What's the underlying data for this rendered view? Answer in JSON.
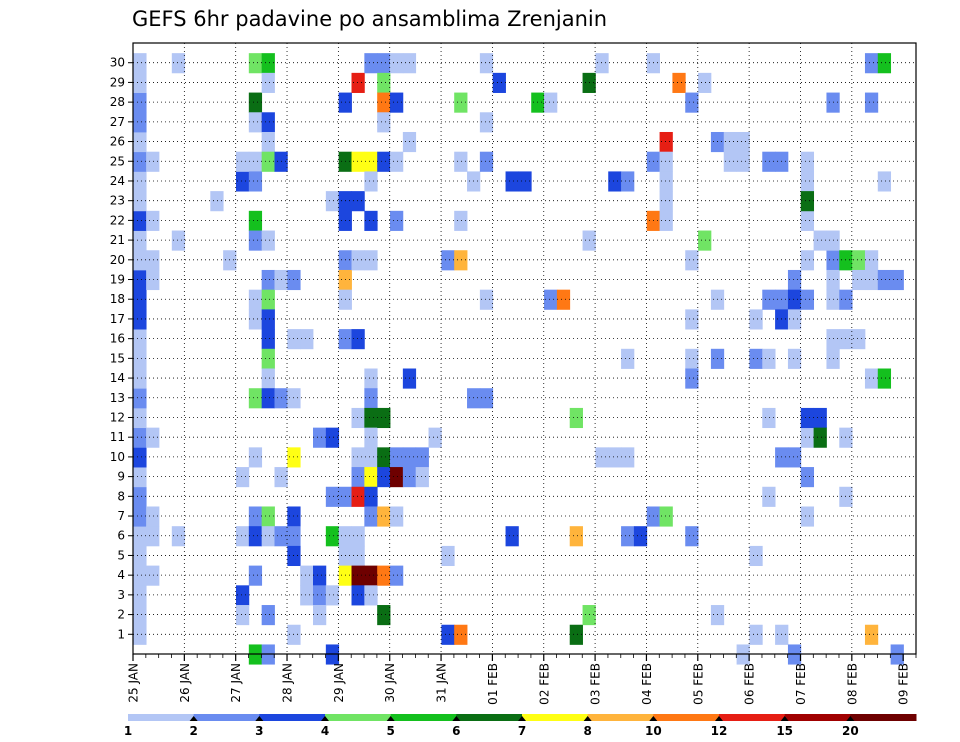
{
  "chart_data": {
    "type": "heatmap",
    "title": "GEFS 6hr padavine po ansamblima Zrenjanin",
    "xlabel": "",
    "ylabel": "",
    "x_tick_labels": [
      "25 JAN",
      "26 JAN",
      "27 JAN",
      "28 JAN",
      "29 JAN",
      "30 JAN",
      "31 JAN",
      "01 FEB",
      "02 FEB",
      "03 FEB",
      "04 FEB",
      "05 FEB",
      "06 FEB",
      "07 FEB",
      "08 FEB",
      "09 FEB"
    ],
    "y_tick_labels": [
      "1",
      "2",
      "3",
      "4",
      "5",
      "6",
      "7",
      "8",
      "9",
      "10",
      "11",
      "12",
      "13",
      "14",
      "15",
      "16",
      "17",
      "18",
      "19",
      "20",
      "21",
      "22",
      "23",
      "24",
      "25",
      "26",
      "27",
      "28",
      "29",
      "30"
    ],
    "x_range": [
      0,
      61
    ],
    "y_range": [
      0,
      31
    ],
    "steps_per_day": 4,
    "grid": true,
    "colorbar": {
      "labels": [
        "1",
        "2",
        "3",
        "4",
        "5",
        "6",
        "7",
        "8",
        "10",
        "12",
        "15",
        "20"
      ],
      "colors": [
        "#b3c6f5",
        "#6a8cf0",
        "#1c46de",
        "#70e464",
        "#14c01e",
        "#0a6e14",
        "#ffff14",
        "#ffb43c",
        "#ff7814",
        "#e61e14",
        "#a00000",
        "#6e0000"
      ]
    },
    "cells": [
      [
        0,
        1,
        1
      ],
      [
        0,
        2,
        1
      ],
      [
        0,
        3,
        1
      ],
      [
        0,
        4,
        1
      ],
      [
        0,
        5,
        1
      ],
      [
        0,
        6,
        1
      ],
      [
        0,
        7,
        2
      ],
      [
        0,
        8,
        2
      ],
      [
        0,
        9,
        1
      ],
      [
        0,
        10,
        3
      ],
      [
        0,
        11,
        2
      ],
      [
        0,
        12,
        1
      ],
      [
        0,
        13,
        2
      ],
      [
        0,
        14,
        1
      ],
      [
        0,
        15,
        1
      ],
      [
        0,
        16,
        1
      ],
      [
        0,
        17,
        3
      ],
      [
        0,
        18,
        3
      ],
      [
        0,
        19,
        3
      ],
      [
        0,
        20,
        1
      ],
      [
        0,
        21,
        1
      ],
      [
        0,
        22,
        3
      ],
      [
        0,
        23,
        1
      ],
      [
        0,
        24,
        1
      ],
      [
        0,
        25,
        2
      ],
      [
        0,
        26,
        1
      ],
      [
        0,
        27,
        2
      ],
      [
        0,
        28,
        2
      ],
      [
        0,
        29,
        1
      ],
      [
        0,
        30,
        1
      ],
      [
        1,
        4,
        1
      ],
      [
        1,
        6,
        1
      ],
      [
        1,
        7,
        1
      ],
      [
        1,
        11,
        1
      ],
      [
        1,
        19,
        1
      ],
      [
        1,
        20,
        1
      ],
      [
        1,
        22,
        1
      ],
      [
        1,
        25,
        1
      ],
      [
        3,
        21,
        1
      ],
      [
        3,
        6,
        1
      ],
      [
        3,
        30,
        1
      ],
      [
        6,
        23,
        1
      ],
      [
        7,
        20,
        1
      ],
      [
        8,
        3,
        3
      ],
      [
        8,
        9,
        1
      ],
      [
        8,
        6,
        1
      ],
      [
        8,
        2,
        1
      ],
      [
        8,
        24,
        3
      ],
      [
        8,
        25,
        1
      ],
      [
        9,
        30,
        4
      ],
      [
        9,
        28,
        6
      ],
      [
        9,
        27,
        1
      ],
      [
        9,
        25,
        1
      ],
      [
        9,
        24,
        2
      ],
      [
        9,
        22,
        5
      ],
      [
        9,
        21,
        2
      ],
      [
        9,
        18,
        1
      ],
      [
        9,
        17,
        1
      ],
      [
        9,
        13,
        4
      ],
      [
        9,
        10,
        1
      ],
      [
        9,
        7,
        2
      ],
      [
        9,
        6,
        3
      ],
      [
        9,
        4,
        2
      ],
      [
        9,
        0,
        5
      ],
      [
        10,
        30,
        5
      ],
      [
        10,
        29,
        1
      ],
      [
        10,
        27,
        3
      ],
      [
        10,
        26,
        1
      ],
      [
        10,
        25,
        4
      ],
      [
        10,
        21,
        1
      ],
      [
        10,
        19,
        2
      ],
      [
        10,
        18,
        4
      ],
      [
        10,
        17,
        3
      ],
      [
        10,
        16,
        3
      ],
      [
        10,
        15,
        4
      ],
      [
        10,
        14,
        1
      ],
      [
        10,
        13,
        3
      ],
      [
        10,
        7,
        4
      ],
      [
        10,
        6,
        1
      ],
      [
        10,
        2,
        2
      ],
      [
        10,
        0,
        2
      ],
      [
        11,
        25,
        3
      ],
      [
        11,
        19,
        1
      ],
      [
        11,
        13,
        2
      ],
      [
        11,
        9,
        1
      ],
      [
        11,
        6,
        2
      ],
      [
        12,
        19,
        2
      ],
      [
        12,
        16,
        1
      ],
      [
        12,
        10,
        7
      ],
      [
        12,
        7,
        3
      ],
      [
        12,
        6,
        2
      ],
      [
        12,
        5,
        3
      ],
      [
        12,
        13,
        1
      ],
      [
        12,
        1,
        1
      ],
      [
        13,
        16,
        1
      ],
      [
        13,
        4,
        1
      ],
      [
        13,
        3,
        1
      ],
      [
        14,
        11,
        2
      ],
      [
        14,
        4,
        3
      ],
      [
        14,
        3,
        2
      ],
      [
        14,
        2,
        1
      ],
      [
        15,
        23,
        1
      ],
      [
        15,
        11,
        3
      ],
      [
        15,
        8,
        2
      ],
      [
        15,
        6,
        5
      ],
      [
        15,
        3,
        1
      ],
      [
        15,
        0,
        3
      ],
      [
        16,
        28,
        3
      ],
      [
        16,
        25,
        6
      ],
      [
        16,
        23,
        3
      ],
      [
        16,
        22,
        3
      ],
      [
        16,
        20,
        2
      ],
      [
        16,
        19,
        8
      ],
      [
        16,
        18,
        1
      ],
      [
        16,
        16,
        2
      ],
      [
        16,
        8,
        2
      ],
      [
        16,
        6,
        1
      ],
      [
        16,
        5,
        1
      ],
      [
        16,
        4,
        7
      ],
      [
        17,
        29,
        10
      ],
      [
        17,
        25,
        7
      ],
      [
        17,
        23,
        3
      ],
      [
        17,
        20,
        1
      ],
      [
        17,
        16,
        3
      ],
      [
        17,
        12,
        1
      ],
      [
        17,
        10,
        1
      ],
      [
        17,
        9,
        2
      ],
      [
        17,
        8,
        10
      ],
      [
        17,
        6,
        1
      ],
      [
        17,
        5,
        1
      ],
      [
        17,
        4,
        12
      ],
      [
        17,
        3,
        3
      ],
      [
        18,
        30,
        2
      ],
      [
        18,
        25,
        7
      ],
      [
        18,
        24,
        1
      ],
      [
        18,
        22,
        3
      ],
      [
        18,
        20,
        1
      ],
      [
        18,
        14,
        1
      ],
      [
        18,
        13,
        2
      ],
      [
        18,
        12,
        6
      ],
      [
        18,
        11,
        1
      ],
      [
        18,
        10,
        1
      ],
      [
        18,
        9,
        7
      ],
      [
        18,
        8,
        3
      ],
      [
        18,
        7,
        2
      ],
      [
        18,
        4,
        12
      ],
      [
        18,
        3,
        1
      ],
      [
        19,
        30,
        2
      ],
      [
        19,
        29,
        4
      ],
      [
        19,
        28,
        9
      ],
      [
        19,
        27,
        1
      ],
      [
        19,
        25,
        3
      ],
      [
        19,
        12,
        6
      ],
      [
        19,
        10,
        6
      ],
      [
        19,
        9,
        3
      ],
      [
        19,
        7,
        8
      ],
      [
        19,
        4,
        9
      ],
      [
        19,
        2,
        6
      ],
      [
        20,
        30,
        1
      ],
      [
        20,
        28,
        3
      ],
      [
        20,
        25,
        1
      ],
      [
        20,
        22,
        2
      ],
      [
        20,
        10,
        2
      ],
      [
        20,
        9,
        12
      ],
      [
        20,
        7,
        1
      ],
      [
        20,
        4,
        2
      ],
      [
        21,
        30,
        1
      ],
      [
        21,
        26,
        1
      ],
      [
        21,
        14,
        3
      ],
      [
        21,
        10,
        2
      ],
      [
        21,
        9,
        2
      ],
      [
        22,
        10,
        2
      ],
      [
        22,
        9,
        1
      ],
      [
        23,
        11,
        1
      ],
      [
        24,
        20,
        2
      ],
      [
        24,
        5,
        1
      ],
      [
        24,
        1,
        3
      ],
      [
        25,
        28,
        4
      ],
      [
        25,
        25,
        1
      ],
      [
        25,
        20,
        8
      ],
      [
        25,
        22,
        1
      ],
      [
        25,
        1,
        9
      ],
      [
        26,
        24,
        1
      ],
      [
        26,
        13,
        2
      ],
      [
        27,
        27,
        1
      ],
      [
        27,
        25,
        2
      ],
      [
        27,
        30,
        1
      ],
      [
        27,
        18,
        1
      ],
      [
        27,
        13,
        2
      ],
      [
        28,
        29,
        3
      ],
      [
        29,
        24,
        3
      ],
      [
        29,
        6,
        3
      ],
      [
        30,
        24,
        3
      ],
      [
        31,
        28,
        5
      ],
      [
        32,
        28,
        1
      ],
      [
        32,
        18,
        2
      ],
      [
        33,
        18,
        9
      ],
      [
        34,
        12,
        4
      ],
      [
        34,
        6,
        8
      ],
      [
        34,
        1,
        6
      ],
      [
        35,
        29,
        6
      ],
      [
        35,
        21,
        1
      ],
      [
        35,
        2,
        4
      ],
      [
        36,
        10,
        1
      ],
      [
        36,
        30,
        1
      ],
      [
        37,
        10,
        1
      ],
      [
        37,
        24,
        3
      ],
      [
        38,
        24,
        2
      ],
      [
        38,
        15,
        1
      ],
      [
        38,
        10,
        1
      ],
      [
        38,
        6,
        2
      ],
      [
        39,
        6,
        3
      ],
      [
        40,
        30,
        1
      ],
      [
        40,
        25,
        2
      ],
      [
        40,
        22,
        9
      ],
      [
        40,
        7,
        2
      ],
      [
        41,
        26,
        10
      ],
      [
        41,
        25,
        1
      ],
      [
        41,
        24,
        1
      ],
      [
        41,
        23,
        1
      ],
      [
        41,
        22,
        1
      ],
      [
        41,
        7,
        4
      ],
      [
        42,
        29,
        9
      ],
      [
        43,
        28,
        2
      ],
      [
        43,
        20,
        1
      ],
      [
        43,
        17,
        1
      ],
      [
        43,
        15,
        1
      ],
      [
        43,
        14,
        2
      ],
      [
        43,
        6,
        2
      ],
      [
        44,
        21,
        4
      ],
      [
        44,
        29,
        1
      ],
      [
        45,
        26,
        2
      ],
      [
        45,
        18,
        1
      ],
      [
        45,
        15,
        2
      ],
      [
        45,
        2,
        1
      ],
      [
        46,
        26,
        1
      ],
      [
        46,
        25,
        1
      ],
      [
        47,
        26,
        1
      ],
      [
        47,
        25,
        1
      ],
      [
        47,
        0,
        1
      ],
      [
        48,
        15,
        2
      ],
      [
        48,
        5,
        1
      ],
      [
        48,
        17,
        1
      ],
      [
        48,
        1,
        1
      ],
      [
        49,
        25,
        2
      ],
      [
        49,
        18,
        2
      ],
      [
        49,
        15,
        1
      ],
      [
        49,
        12,
        1
      ],
      [
        49,
        8,
        1
      ],
      [
        50,
        25,
        2
      ],
      [
        50,
        18,
        2
      ],
      [
        50,
        17,
        3
      ],
      [
        50,
        10,
        2
      ],
      [
        50,
        1,
        1
      ],
      [
        51,
        19,
        2
      ],
      [
        51,
        18,
        3
      ],
      [
        51,
        17,
        1
      ],
      [
        51,
        10,
        2
      ],
      [
        51,
        15,
        1
      ],
      [
        51,
        0,
        2
      ],
      [
        52,
        20,
        1
      ],
      [
        52,
        18,
        2
      ],
      [
        52,
        11,
        1
      ],
      [
        52,
        9,
        2
      ],
      [
        52,
        24,
        1
      ],
      [
        52,
        25,
        1
      ],
      [
        52,
        22,
        1
      ],
      [
        52,
        7,
        1
      ],
      [
        52,
        12,
        3
      ],
      [
        52,
        23,
        6
      ],
      [
        53,
        12,
        3
      ],
      [
        53,
        11,
        6
      ],
      [
        53,
        21,
        1
      ],
      [
        54,
        28,
        2
      ],
      [
        54,
        20,
        2
      ],
      [
        54,
        19,
        1
      ],
      [
        54,
        18,
        1
      ],
      [
        54,
        21,
        1
      ],
      [
        54,
        16,
        1
      ],
      [
        54,
        15,
        1
      ],
      [
        55,
        20,
        5
      ],
      [
        55,
        18,
        2
      ],
      [
        55,
        16,
        1
      ],
      [
        55,
        11,
        1
      ],
      [
        55,
        8,
        1
      ],
      [
        56,
        20,
        4
      ],
      [
        56,
        19,
        1
      ],
      [
        56,
        16,
        1
      ],
      [
        57,
        30,
        2
      ],
      [
        57,
        28,
        2
      ],
      [
        57,
        20,
        1
      ],
      [
        57,
        19,
        1
      ],
      [
        57,
        14,
        1
      ],
      [
        57,
        1,
        8
      ],
      [
        58,
        30,
        5
      ],
      [
        58,
        24,
        1
      ],
      [
        58,
        19,
        2
      ],
      [
        58,
        14,
        5
      ],
      [
        59,
        19,
        2
      ],
      [
        59,
        0,
        2
      ]
    ]
  }
}
